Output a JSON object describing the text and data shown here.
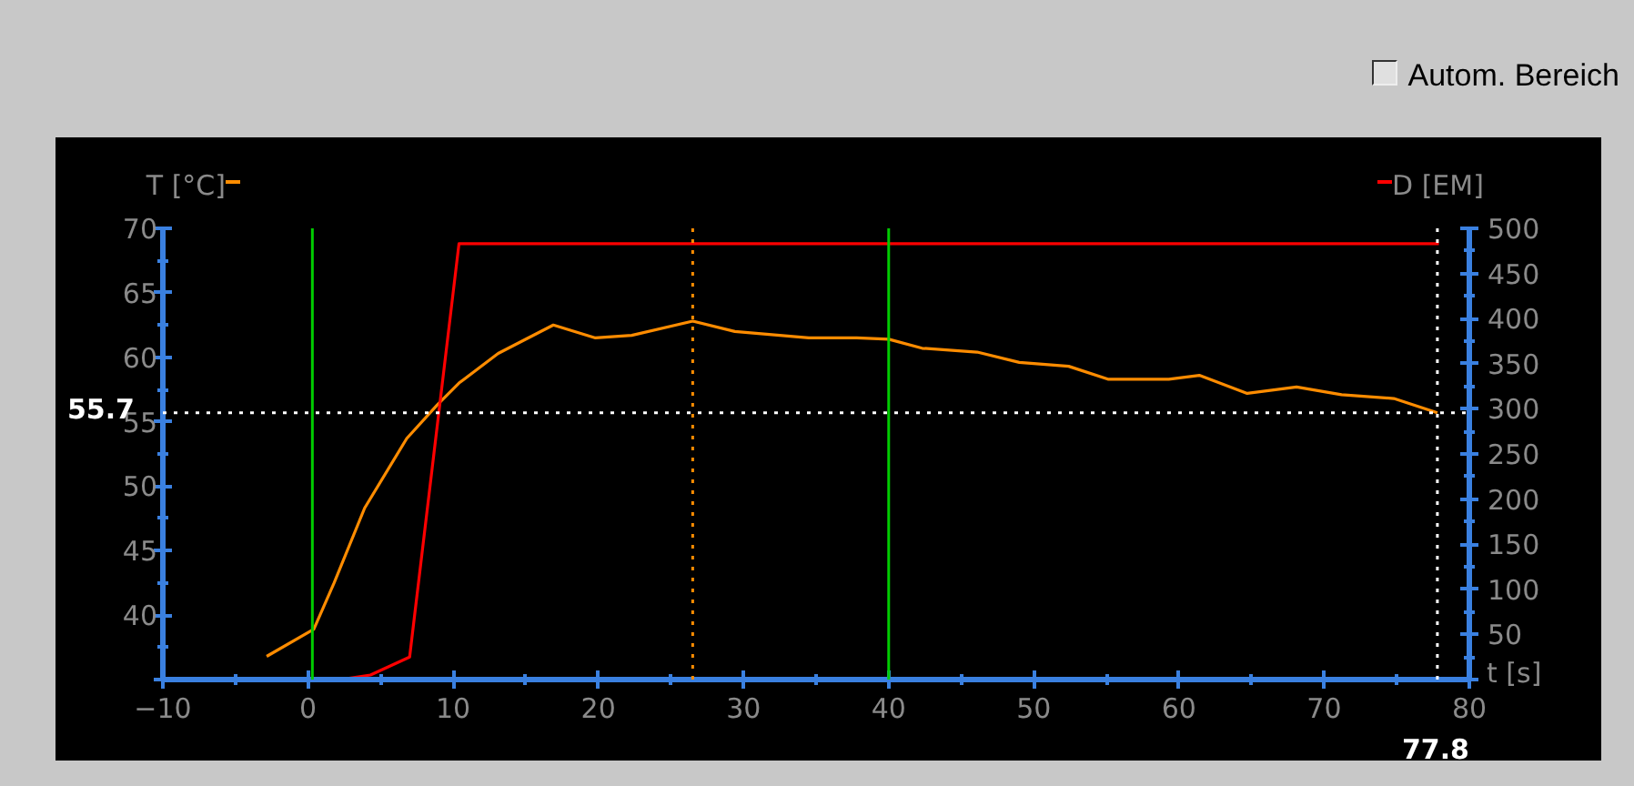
{
  "chart_data": {
    "type": "line",
    "xlabel": "t [s]",
    "ylabel": "T [°C]",
    "y2label": "D [EM]",
    "series": [
      {
        "color": "#ff8c00",
        "x": [
          -2.85,
          0.4,
          1.8,
          3.9,
          6.8,
          8.9,
          10.4,
          13.1,
          16.9,
          19.8,
          22.3,
          26.5,
          29.4,
          34.5,
          37.8,
          40,
          42.3,
          46.1,
          49.0,
          52.4,
          55.1,
          59.3,
          61.4,
          64.7,
          68.1,
          71.2,
          74.8,
          77.8
        ],
        "values": [
          36.8,
          38.9,
          42.5,
          48.3,
          53.7,
          56.3,
          58.0,
          60.3,
          62.5,
          61.5,
          61.7,
          62.8,
          62.0,
          61.5,
          61.5,
          61.4,
          60.7,
          60.4,
          59.6,
          59.3,
          58.3,
          58.3,
          58.6,
          57.2,
          57.7,
          57.1,
          56.8,
          55.7
        ]
      },
      {
        "color": "#ff0000",
        "axis": "y2",
        "x": [
          -2.85,
          2.2,
          4.3,
          7.0,
          10.4,
          77.9
        ],
        "values": [
          0,
          0,
          5,
          25,
          483,
          483
        ]
      }
    ],
    "xlim": [
      -10,
      80
    ],
    "xticks": [
      -10,
      0,
      10,
      20,
      30,
      40,
      50,
      60,
      70,
      80
    ],
    "ylim": [
      35,
      70
    ],
    "yticks": [
      {
        "value": 35,
        "label": null
      },
      40,
      45,
      50,
      55,
      60,
      65,
      70
    ],
    "y2lim": [
      0,
      500
    ],
    "y2ticks": [
      {
        "value": 0,
        "label": null
      },
      50,
      100,
      150,
      200,
      250,
      300,
      350,
      400,
      450,
      500
    ],
    "grid": false,
    "marker": "none",
    "line_style": "solid",
    "ref_lines": [
      {
        "axis": "x",
        "value": 0.3,
        "color": "#00cc00",
        "line_style": "solid"
      },
      {
        "axis": "x",
        "value": 40,
        "color": "#00cc00",
        "line_style": "solid"
      },
      {
        "axis": "x",
        "value": 26.5,
        "color": "#ff8c00",
        "line_style": "dotted"
      },
      {
        "axis": "y",
        "value": 55.7,
        "label": "55.7",
        "color": "#ffffff",
        "line_style": "dotted"
      },
      {
        "axis": "x",
        "value": 77.8,
        "label": "77.8",
        "color": "#ffffff",
        "line_style": "dotted"
      }
    ],
    "annotations": [
      "Autom. Bereich"
    ]
  }
}
